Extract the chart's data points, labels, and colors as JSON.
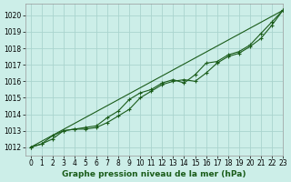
{
  "xlabel": "Graphe pression niveau de la mer (hPa)",
  "background_color": "#cceee8",
  "grid_color": "#aad4ce",
  "line_color": "#1a5c1a",
  "xlim": [
    -0.5,
    23
  ],
  "ylim": [
    1011.5,
    1020.7
  ],
  "xticks": [
    0,
    1,
    2,
    3,
    4,
    5,
    6,
    7,
    8,
    9,
    10,
    11,
    12,
    13,
    14,
    15,
    16,
    17,
    18,
    19,
    20,
    21,
    22,
    23
  ],
  "yticks": [
    1012,
    1013,
    1014,
    1015,
    1016,
    1017,
    1018,
    1019,
    1020
  ],
  "line1_x": [
    0,
    1,
    2,
    3,
    4,
    5,
    6,
    7,
    8,
    9,
    10,
    11,
    12,
    13,
    14,
    15,
    16,
    17,
    18,
    19,
    20,
    21,
    22,
    23
  ],
  "line1_y": [
    1012.0,
    1012.2,
    1012.5,
    1013.0,
    1013.1,
    1013.1,
    1013.2,
    1013.5,
    1013.9,
    1014.3,
    1015.0,
    1015.4,
    1015.8,
    1016.0,
    1016.1,
    1016.0,
    1016.5,
    1017.1,
    1017.5,
    1017.7,
    1018.1,
    1018.6,
    1019.4,
    1020.3
  ],
  "line2_x": [
    0,
    1,
    2,
    3,
    4,
    5,
    6,
    7,
    8,
    9,
    10,
    11,
    12,
    13,
    14,
    15,
    16,
    17,
    18,
    19,
    20,
    21,
    22,
    23
  ],
  "line2_y": [
    1012.0,
    1012.2,
    1012.7,
    1013.0,
    1013.1,
    1013.2,
    1013.3,
    1013.8,
    1014.2,
    1014.9,
    1015.3,
    1015.5,
    1015.9,
    1016.1,
    1015.9,
    1016.4,
    1017.1,
    1017.2,
    1017.6,
    1017.8,
    1018.2,
    1018.9,
    1019.6,
    1020.3
  ],
  "line3_x": [
    0,
    23
  ],
  "line3_y": [
    1012.0,
    1020.3
  ],
  "tick_fontsize": 5.5,
  "label_fontsize": 6.5
}
